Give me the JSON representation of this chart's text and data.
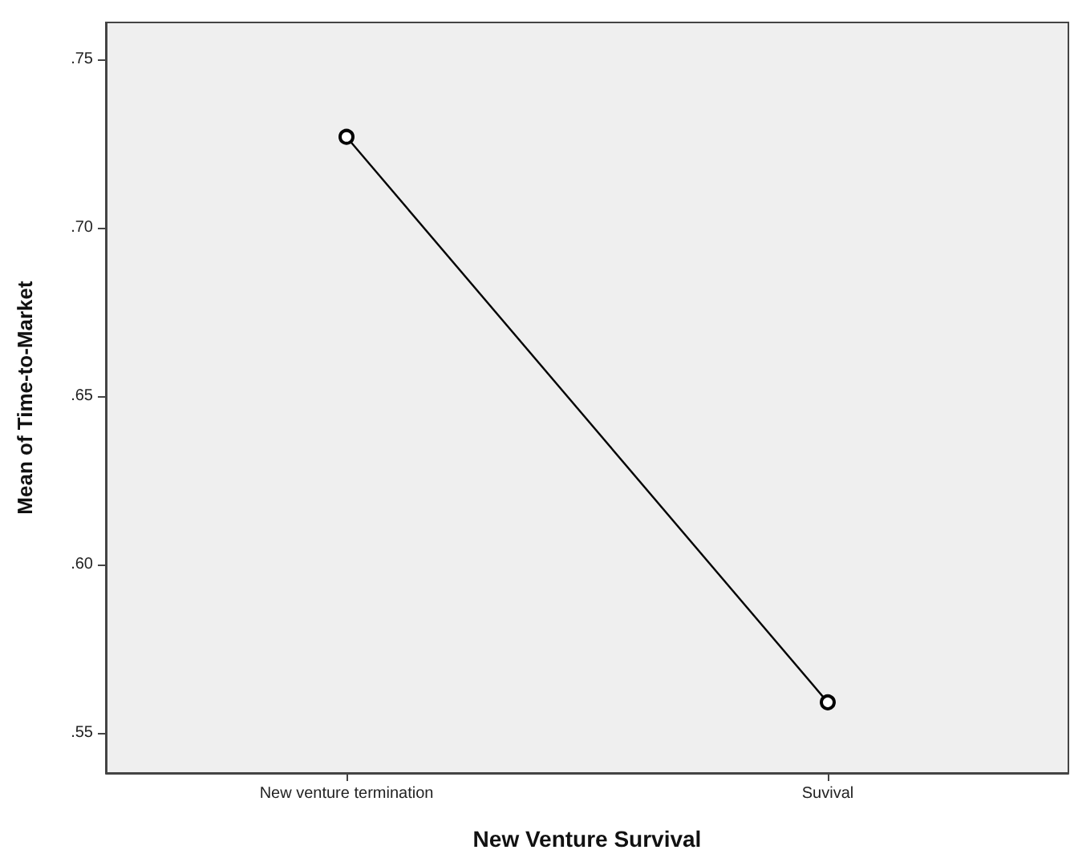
{
  "chart_data": {
    "type": "line",
    "xlabel": "New Venture Survival",
    "ylabel": "Mean of Time-to-Market",
    "categories": [
      "New venture termination",
      "Suvival"
    ],
    "series": [
      {
        "color": "#000000",
        "values": [
          0.727,
          0.559
        ]
      }
    ],
    "ylim": [
      0.538,
      0.761
    ],
    "yticks": [
      {
        "value": 0.55,
        "label": ".55"
      },
      {
        "value": 0.6,
        "label": ".60"
      },
      {
        "value": 0.65,
        "label": ".65"
      },
      {
        "value": 0.7,
        "label": ".70"
      },
      {
        "value": 0.75,
        "label": ".75"
      }
    ],
    "grid": false,
    "marker": "circle",
    "line_style": "solid"
  }
}
